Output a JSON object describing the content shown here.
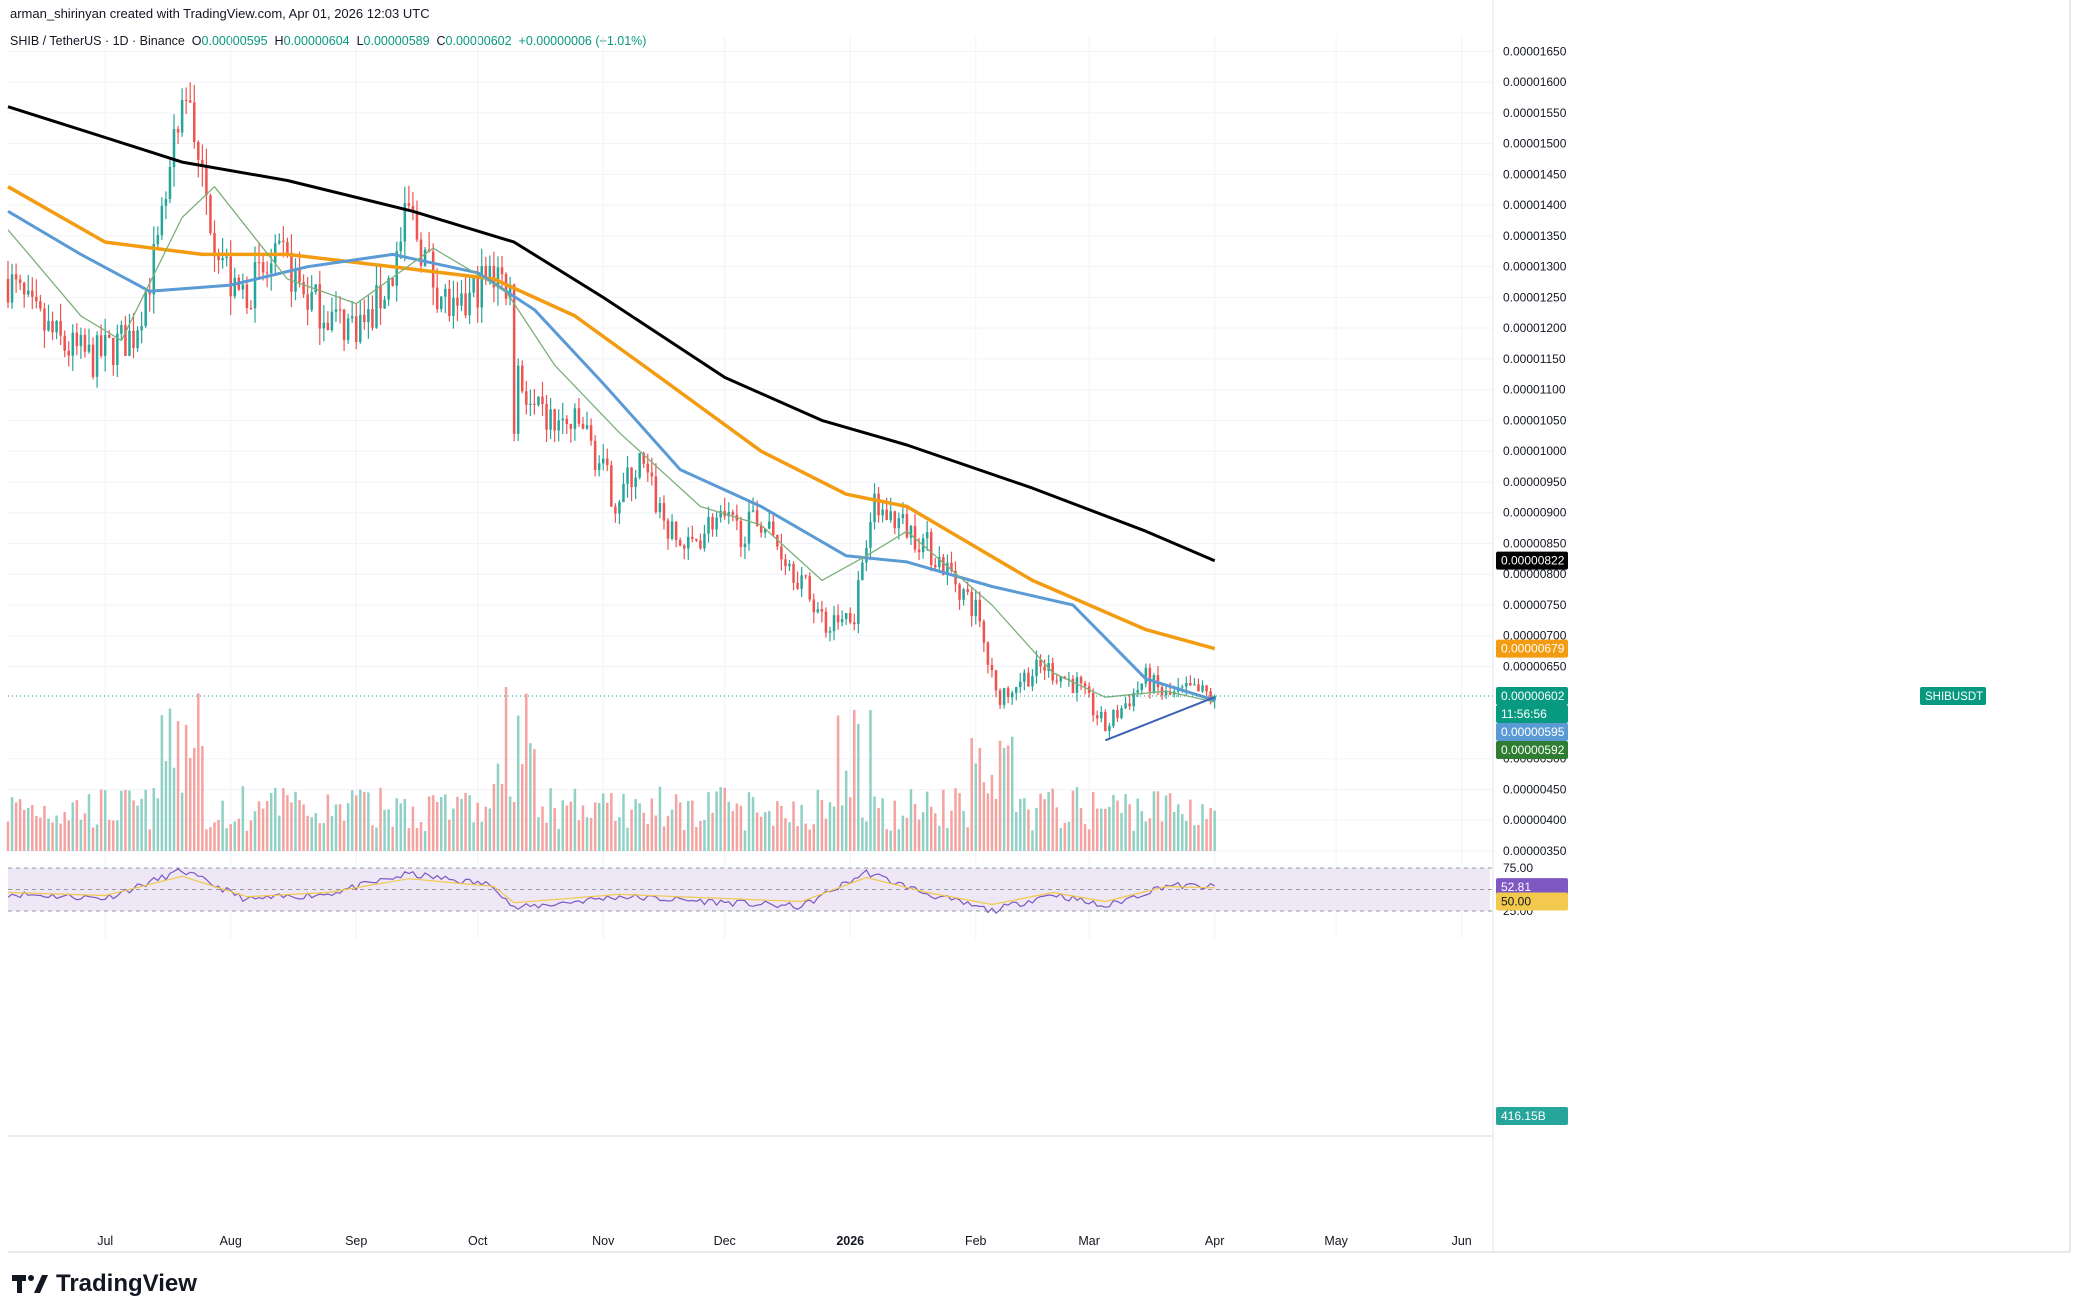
{
  "header": {
    "author_line": "arman_shirinyan created with TradingView.com, Apr 01, 2026 12:03 UTC"
  },
  "legend": {
    "symbol": "SHIB / TetherUS · 1D · Binance",
    "o_label": "O",
    "o_value": "0.00000595",
    "h_label": "H",
    "h_value": "0.00000604",
    "l_label": "L",
    "l_value": "0.00000589",
    "c_label": "C",
    "c_value": "0.00000602",
    "change": "+0.00000006 (+1.01%)"
  },
  "brand": {
    "name": "TradingView"
  },
  "colors": {
    "up": "#26a69a",
    "down": "#ef5350",
    "up_volume": "#8fd1c5",
    "down_volume": "#f5a3a0",
    "ma200": "#000000",
    "ma100": "#f39c12",
    "ma50": "#5b9bd5",
    "ma20": "#7cb07a",
    "trendline": "#3c5fb8",
    "rsi": "#7e57c2",
    "rsi_ma": "#f2c94c",
    "rsi_band": "#ede7f6"
  },
  "chart_data": {
    "type": "candlestick",
    "symbol": "SHIB / TetherUS",
    "timeframe": "1D",
    "exchange": "Binance",
    "x_range": [
      "2025-06-07",
      "2026-06-08"
    ],
    "y_range": [
      3.5e-06,
      1.675e-05
    ],
    "x_tick_labels": [
      "Jul",
      "Aug",
      "Sep",
      "Oct",
      "Nov",
      "Dec",
      "2026",
      "Feb",
      "Mar",
      "Apr",
      "May",
      "Jun"
    ],
    "x_tick_dates": [
      "2025-07-01",
      "2025-08-01",
      "2025-09-01",
      "2025-10-01",
      "2025-11-01",
      "2025-12-01",
      "2026-01-01",
      "2026-02-01",
      "2026-03-01",
      "2026-04-01",
      "2026-05-01",
      "2026-06-01"
    ],
    "y_tick_labels": [
      "0.00001650",
      "0.00001600",
      "0.00001550",
      "0.00001500",
      "0.00001450",
      "0.00001400",
      "0.00001350",
      "0.00001300",
      "0.00001250",
      "0.00001200",
      "0.00001150",
      "0.00001100",
      "0.00001050",
      "0.00001000",
      "0.00000950",
      "0.00000900",
      "0.00000850",
      "0.00000800",
      "0.00000750",
      "0.00000700",
      "0.00000650",
      "0.00000500",
      "0.00000450",
      "0.00000400",
      "0.00000350"
    ],
    "price_path": {
      "dates": [
        "2025-06-07",
        "2025-06-13",
        "2025-06-21",
        "2025-06-28",
        "2025-07-08",
        "2025-07-14",
        "2025-07-18",
        "2025-07-22",
        "2025-07-25",
        "2025-08-02",
        "2025-08-08",
        "2025-08-14",
        "2025-08-20",
        "2025-08-28",
        "2025-09-04",
        "2025-09-10",
        "2025-09-14",
        "2025-09-20",
        "2025-09-26",
        "2025-10-01",
        "2025-10-06",
        "2025-10-09",
        "2025-10-10",
        "2025-10-11",
        "2025-10-15",
        "2025-10-22",
        "2025-10-27",
        "2025-11-04",
        "2025-11-10",
        "2025-11-18",
        "2025-11-22",
        "2025-11-28",
        "2025-12-05",
        "2025-12-10",
        "2025-12-18",
        "2025-12-26",
        "2026-01-02",
        "2026-01-06",
        "2026-01-12",
        "2026-01-18",
        "2026-01-26",
        "2026-02-01",
        "2026-02-05",
        "2026-02-06",
        "2026-02-12",
        "2026-02-18",
        "2026-02-26",
        "2026-03-05",
        "2026-03-10",
        "2026-03-15",
        "2026-03-20",
        "2026-03-26",
        "2026-04-01"
      ],
      "closes": [
        1.28e-05,
        1.22e-05,
        1.17e-05,
        1.15e-05,
        1.19e-05,
        1.33e-05,
        1.48e-05,
        1.58e-05,
        1.43e-05,
        1.25e-05,
        1.28e-05,
        1.31e-05,
        1.25e-05,
        1.21e-05,
        1.21e-05,
        1.29e-05,
        1.39e-05,
        1.28e-05,
        1.21e-05,
        1.27e-05,
        1.29e-05,
        1.26e-05,
        1.05e-05,
        1.13e-05,
        1.06e-05,
        1.04e-05,
        1.04e-05,
        9.2e-06,
        9.8e-06,
        8.6e-06,
        8.4e-06,
        8.9e-06,
        8.7e-06,
        8.9e-06,
        8.1e-06,
        7.2e-06,
        7.4e-06,
        9.1e-06,
        8.9e-06,
        8.6e-06,
        8e-06,
        7.4e-06,
        6.3e-06,
        6e-06,
        6.3e-06,
        6.5e-06,
        6.2e-06,
        5.5e-06,
        5.9e-06,
        6.3e-06,
        6e-06,
        6.1e-06,
        6.02e-06
      ]
    },
    "last_candle": {
      "open": 5.95e-06,
      "high": 6.04e-06,
      "low": 5.89e-06,
      "close": 6.02e-06,
      "change": 6e-08,
      "change_pct": 1.01
    },
    "series": [
      {
        "name": "MA 200",
        "color": "#000000",
        "last": 8.22e-06,
        "points": [
          [
            "2025-06-07",
            1.56e-05
          ],
          [
            "2025-07-01",
            1.51e-05
          ],
          [
            "2025-07-20",
            1.47e-05
          ],
          [
            "2025-08-15",
            1.44e-05
          ],
          [
            "2025-09-15",
            1.39e-05
          ],
          [
            "2025-10-10",
            1.34e-05
          ],
          [
            "2025-11-01",
            1.25e-05
          ],
          [
            "2025-12-01",
            1.12e-05
          ],
          [
            "2025-12-25",
            1.05e-05
          ],
          [
            "2026-01-15",
            1.01e-05
          ],
          [
            "2026-02-15",
            9.4e-06
          ],
          [
            "2026-03-15",
            8.7e-06
          ],
          [
            "2026-04-01",
            8.22e-06
          ]
        ]
      },
      {
        "name": "MA 100",
        "color": "#f39c12",
        "last": 6.79e-06,
        "points": [
          [
            "2025-06-07",
            1.43e-05
          ],
          [
            "2025-07-01",
            1.34e-05
          ],
          [
            "2025-07-25",
            1.32e-05
          ],
          [
            "2025-08-15",
            1.32e-05
          ],
          [
            "2025-09-10",
            1.3e-05
          ],
          [
            "2025-10-05",
            1.28e-05
          ],
          [
            "2025-10-25",
            1.22e-05
          ],
          [
            "2025-11-15",
            1.12e-05
          ],
          [
            "2025-12-10",
            1e-05
          ],
          [
            "2025-12-31",
            9.3e-06
          ],
          [
            "2026-01-15",
            9.1e-06
          ],
          [
            "2026-02-15",
            7.9e-06
          ],
          [
            "2026-03-15",
            7.1e-06
          ],
          [
            "2026-04-01",
            6.79e-06
          ]
        ]
      },
      {
        "name": "MA 50",
        "color": "#5b9bd5",
        "last": 5.95e-06,
        "points": [
          [
            "2025-06-07",
            1.39e-05
          ],
          [
            "2025-06-25",
            1.32e-05
          ],
          [
            "2025-07-12",
            1.26e-05
          ],
          [
            "2025-08-01",
            1.27e-05
          ],
          [
            "2025-08-20",
            1.3e-05
          ],
          [
            "2025-09-10",
            1.32e-05
          ],
          [
            "2025-10-01",
            1.29e-05
          ],
          [
            "2025-10-15",
            1.23e-05
          ],
          [
            "2025-11-01",
            1.11e-05
          ],
          [
            "2025-11-20",
            9.7e-06
          ],
          [
            "2025-12-10",
            9.1e-06
          ],
          [
            "2025-12-31",
            8.3e-06
          ],
          [
            "2026-01-15",
            8.2e-06
          ],
          [
            "2026-02-05",
            7.8e-06
          ],
          [
            "2026-02-25",
            7.5e-06
          ],
          [
            "2026-03-15",
            6.3e-06
          ],
          [
            "2026-04-01",
            5.95e-06
          ]
        ]
      },
      {
        "name": "MA 20",
        "color": "#7cb07a",
        "last": 5.92e-06,
        "points": [
          [
            "2025-06-07",
            1.36e-05
          ],
          [
            "2025-06-25",
            1.22e-05
          ],
          [
            "2025-07-05",
            1.18e-05
          ],
          [
            "2025-07-20",
            1.38e-05
          ],
          [
            "2025-07-28",
            1.43e-05
          ],
          [
            "2025-08-15",
            1.28e-05
          ],
          [
            "2025-09-01",
            1.24e-05
          ],
          [
            "2025-09-20",
            1.33e-05
          ],
          [
            "2025-10-08",
            1.26e-05
          ],
          [
            "2025-10-20",
            1.14e-05
          ],
          [
            "2025-11-05",
            1.03e-05
          ],
          [
            "2025-11-25",
            9.1e-06
          ],
          [
            "2025-12-10",
            8.8e-06
          ],
          [
            "2025-12-25",
            7.9e-06
          ],
          [
            "2026-01-05",
            8.3e-06
          ],
          [
            "2026-01-15",
            8.7e-06
          ],
          [
            "2026-02-05",
            7.5e-06
          ],
          [
            "2026-02-20",
            6.4e-06
          ],
          [
            "2026-03-05",
            6e-06
          ],
          [
            "2026-03-20",
            6.1e-06
          ],
          [
            "2026-04-01",
            5.92e-06
          ]
        ]
      }
    ],
    "trendline": {
      "from": [
        "2026-03-05",
        5.3e-06
      ],
      "to": [
        "2026-04-01",
        6e-06
      ]
    },
    "price_labels": [
      {
        "text": "0.00000822",
        "value": 8.22e-06,
        "color": "#000000"
      },
      {
        "text": "0.00000679",
        "value": 6.79e-06,
        "color": "#f39c12"
      },
      {
        "text": "0.00000602",
        "value": 6.02e-06,
        "color": "#089981"
      },
      {
        "text": "11:56:56",
        "color": "#089981"
      },
      {
        "text": "0.00000595",
        "value": 5.95e-06,
        "color": "#5b9bd5"
      },
      {
        "text": "0.00000592",
        "value": 5.92e-06,
        "color": "#2e7d32"
      }
    ],
    "symbol_tag": "SHIBUSDT",
    "volume": {
      "last_label": "416.15B",
      "relative_peaks": [
        [
          "2025-07-20",
          1.0
        ],
        [
          "2025-10-10",
          1.2
        ],
        [
          "2026-01-02",
          0.9
        ],
        [
          "2026-02-05",
          0.7
        ]
      ]
    },
    "rsi": {
      "upper_label": "75.00",
      "lower_label": "25.00",
      "value_label": "52.81",
      "ma_label": "50.00",
      "value": 52.81,
      "upper": 75,
      "mid": 50,
      "lower": 25,
      "points": [
        [
          "2025-06-07",
          45
        ],
        [
          "2025-07-01",
          40
        ],
        [
          "2025-07-20",
          72
        ],
        [
          "2025-08-05",
          38
        ],
        [
          "2025-08-25",
          45
        ],
        [
          "2025-09-14",
          68
        ],
        [
          "2025-10-05",
          55
        ],
        [
          "2025-10-10",
          28
        ],
        [
          "2025-11-05",
          42
        ],
        [
          "2025-12-01",
          35
        ],
        [
          "2025-12-20",
          30
        ],
        [
          "2026-01-05",
          70
        ],
        [
          "2026-01-20",
          45
        ],
        [
          "2026-02-05",
          25
        ],
        [
          "2026-02-20",
          45
        ],
        [
          "2026-03-05",
          30
        ],
        [
          "2026-03-20",
          55
        ],
        [
          "2026-04-01",
          52.81
        ]
      ]
    }
  }
}
